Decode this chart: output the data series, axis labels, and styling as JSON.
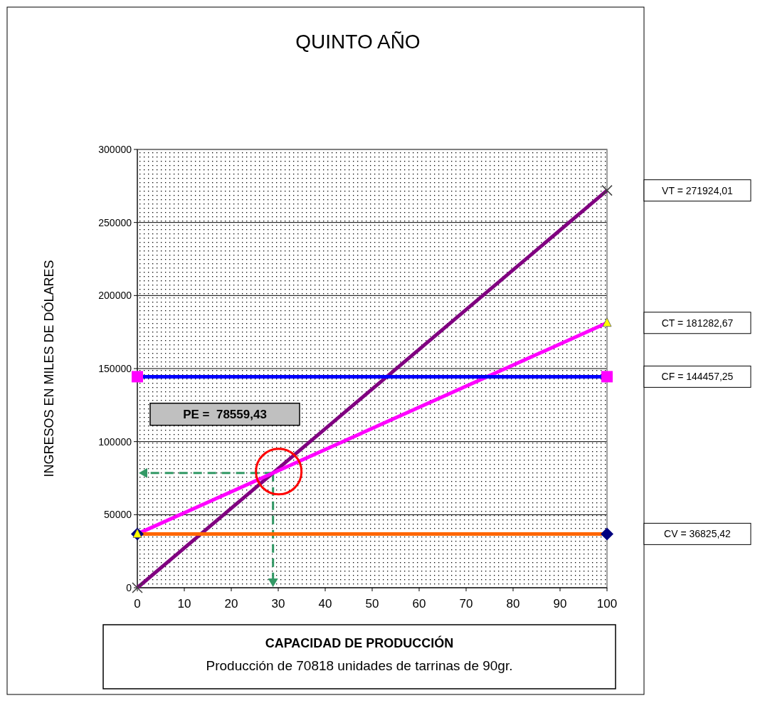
{
  "chart_data": {
    "type": "line",
    "title": "QUINTO AÑO",
    "ylabel": "INGRESOS EN MILES DE DÓLARES",
    "xlabel": "CAPACIDAD DE PRODUCCIÓN",
    "xlim": [
      0,
      100
    ],
    "xticks": [
      0,
      10,
      20,
      30,
      40,
      50,
      60,
      70,
      80,
      90,
      100
    ],
    "ylim": [
      0,
      300000
    ],
    "yticks": [
      0,
      50000,
      100000,
      150000,
      200000,
      250000,
      300000
    ],
    "grid": "y",
    "x": [
      0,
      100
    ],
    "series": [
      {
        "values": [
          0,
          271924
        ],
        "color": "#800080",
        "marker": "cross",
        "colors": [
          "#404040",
          "#404040"
        ]
      },
      {
        "values": [
          36825,
          181283
        ],
        "color": "#ff00ff",
        "marker": "triangle",
        "colors": [
          "#ffff00",
          "#ffff00"
        ]
      },
      {
        "values": [
          144457,
          144457
        ],
        "color": "#0000ff",
        "marker": "square",
        "colors": [
          "#ff00ff",
          "#ff00ff"
        ]
      },
      {
        "values": [
          36825,
          36825
        ],
        "color": "#ff6600",
        "marker": "diamond",
        "colors": [
          "#000080",
          "#000080"
        ]
      }
    ],
    "annotations": [
      "VT = 271924,01",
      "CT = 181282,67",
      "CF = 144457,25",
      "CV = 36825,42",
      "PE =  78559,43",
      "Producción de 70818 unidades de tarrinas de 90gr."
    ]
  }
}
